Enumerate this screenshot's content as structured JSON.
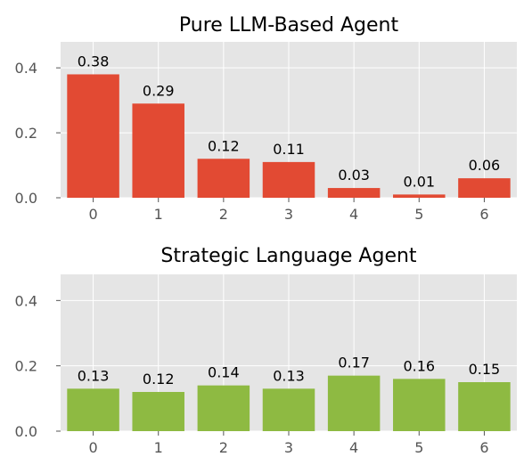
{
  "chart_data": [
    {
      "type": "bar",
      "title": "Pure LLM-Based Agent",
      "categories": [
        "0",
        "1",
        "2",
        "3",
        "4",
        "5",
        "6"
      ],
      "values": [
        0.38,
        0.29,
        0.12,
        0.11,
        0.03,
        0.01,
        0.06
      ],
      "value_labels": [
        "0.38",
        "0.29",
        "0.12",
        "0.11",
        "0.03",
        "0.01",
        "0.06"
      ],
      "yticks": [
        "0.0",
        "0.2",
        "0.4"
      ],
      "ytick_values": [
        0,
        0.2,
        0.4
      ],
      "ylim": [
        0,
        0.48
      ],
      "grid": true,
      "color": "#E24A33",
      "xlabel": "",
      "ylabel": ""
    },
    {
      "type": "bar",
      "title": "Strategic Language Agent",
      "categories": [
        "0",
        "1",
        "2",
        "3",
        "4",
        "5",
        "6"
      ],
      "values": [
        0.13,
        0.12,
        0.14,
        0.13,
        0.17,
        0.16,
        0.15
      ],
      "value_labels": [
        "0.13",
        "0.12",
        "0.14",
        "0.13",
        "0.17",
        "0.16",
        "0.15"
      ],
      "yticks": [
        "0.0",
        "0.2",
        "0.4"
      ],
      "ytick_values": [
        0,
        0.2,
        0.4
      ],
      "ylim": [
        0,
        0.48
      ],
      "grid": true,
      "color": "#8EBA42",
      "xlabel": "",
      "ylabel": ""
    }
  ],
  "style": {
    "plot_background": "#E5E5E5",
    "grid_color": "#FFFFFF"
  }
}
